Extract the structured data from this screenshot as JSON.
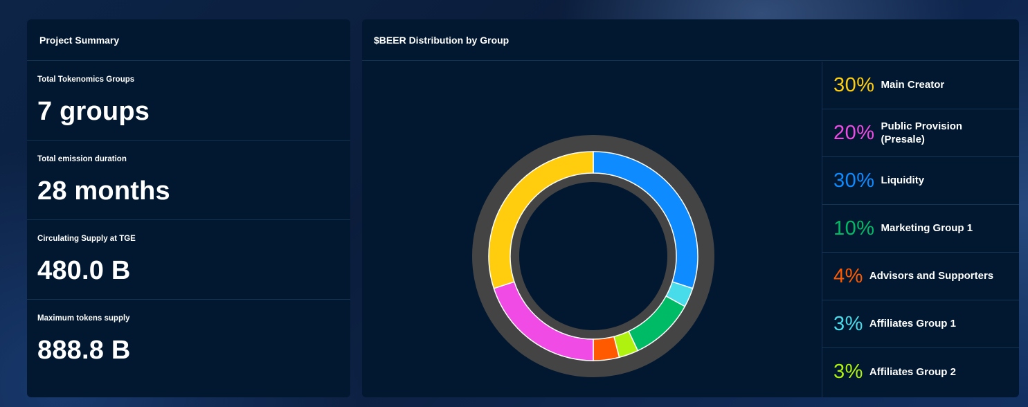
{
  "summary": {
    "title": "Project Summary",
    "stats": [
      {
        "label": "Total Tokenomics Groups",
        "value": "7 groups"
      },
      {
        "label": "Total emission duration",
        "value": "28 months"
      },
      {
        "label": "Circulating Supply at TGE",
        "value": "480.0 B"
      },
      {
        "label": "Maximum tokens supply",
        "value": "888.8 B"
      }
    ]
  },
  "distribution": {
    "title": "$BEER Distribution by Group",
    "legend": [
      {
        "pct": "30%",
        "name": "Main Creator",
        "color": "#ffcd0d"
      },
      {
        "pct": "20%",
        "name": "Public Provision (Presale)",
        "color": "#f04be4"
      },
      {
        "pct": "30%",
        "name": "Liquidity",
        "color": "#0e8bff"
      },
      {
        "pct": "10%",
        "name": "Marketing Group 1",
        "color": "#00bb66"
      },
      {
        "pct": "4%",
        "name": "Advisors and Supporters",
        "color": "#ff5a00"
      },
      {
        "pct": "3%",
        "name": "Affiliates Group 1",
        "color": "#48dcea"
      },
      {
        "pct": "3%",
        "name": "Affiliates Group 2",
        "color": "#b0f20f"
      }
    ]
  },
  "chart_data": {
    "type": "pie",
    "categories": [
      "Liquidity",
      "Affiliates Group 1",
      "Marketing Group 1",
      "Affiliates Group 2",
      "Advisors and Supporters",
      "Public Provision (Presale)",
      "Main Creator"
    ],
    "values": [
      30,
      3,
      10,
      3,
      4,
      20,
      30
    ],
    "colors": [
      "#0e8bff",
      "#48dcea",
      "#00bb66",
      "#b0f20f",
      "#ff5a00",
      "#f04be4",
      "#ffcd0d"
    ],
    "track_color": "#444444"
  }
}
